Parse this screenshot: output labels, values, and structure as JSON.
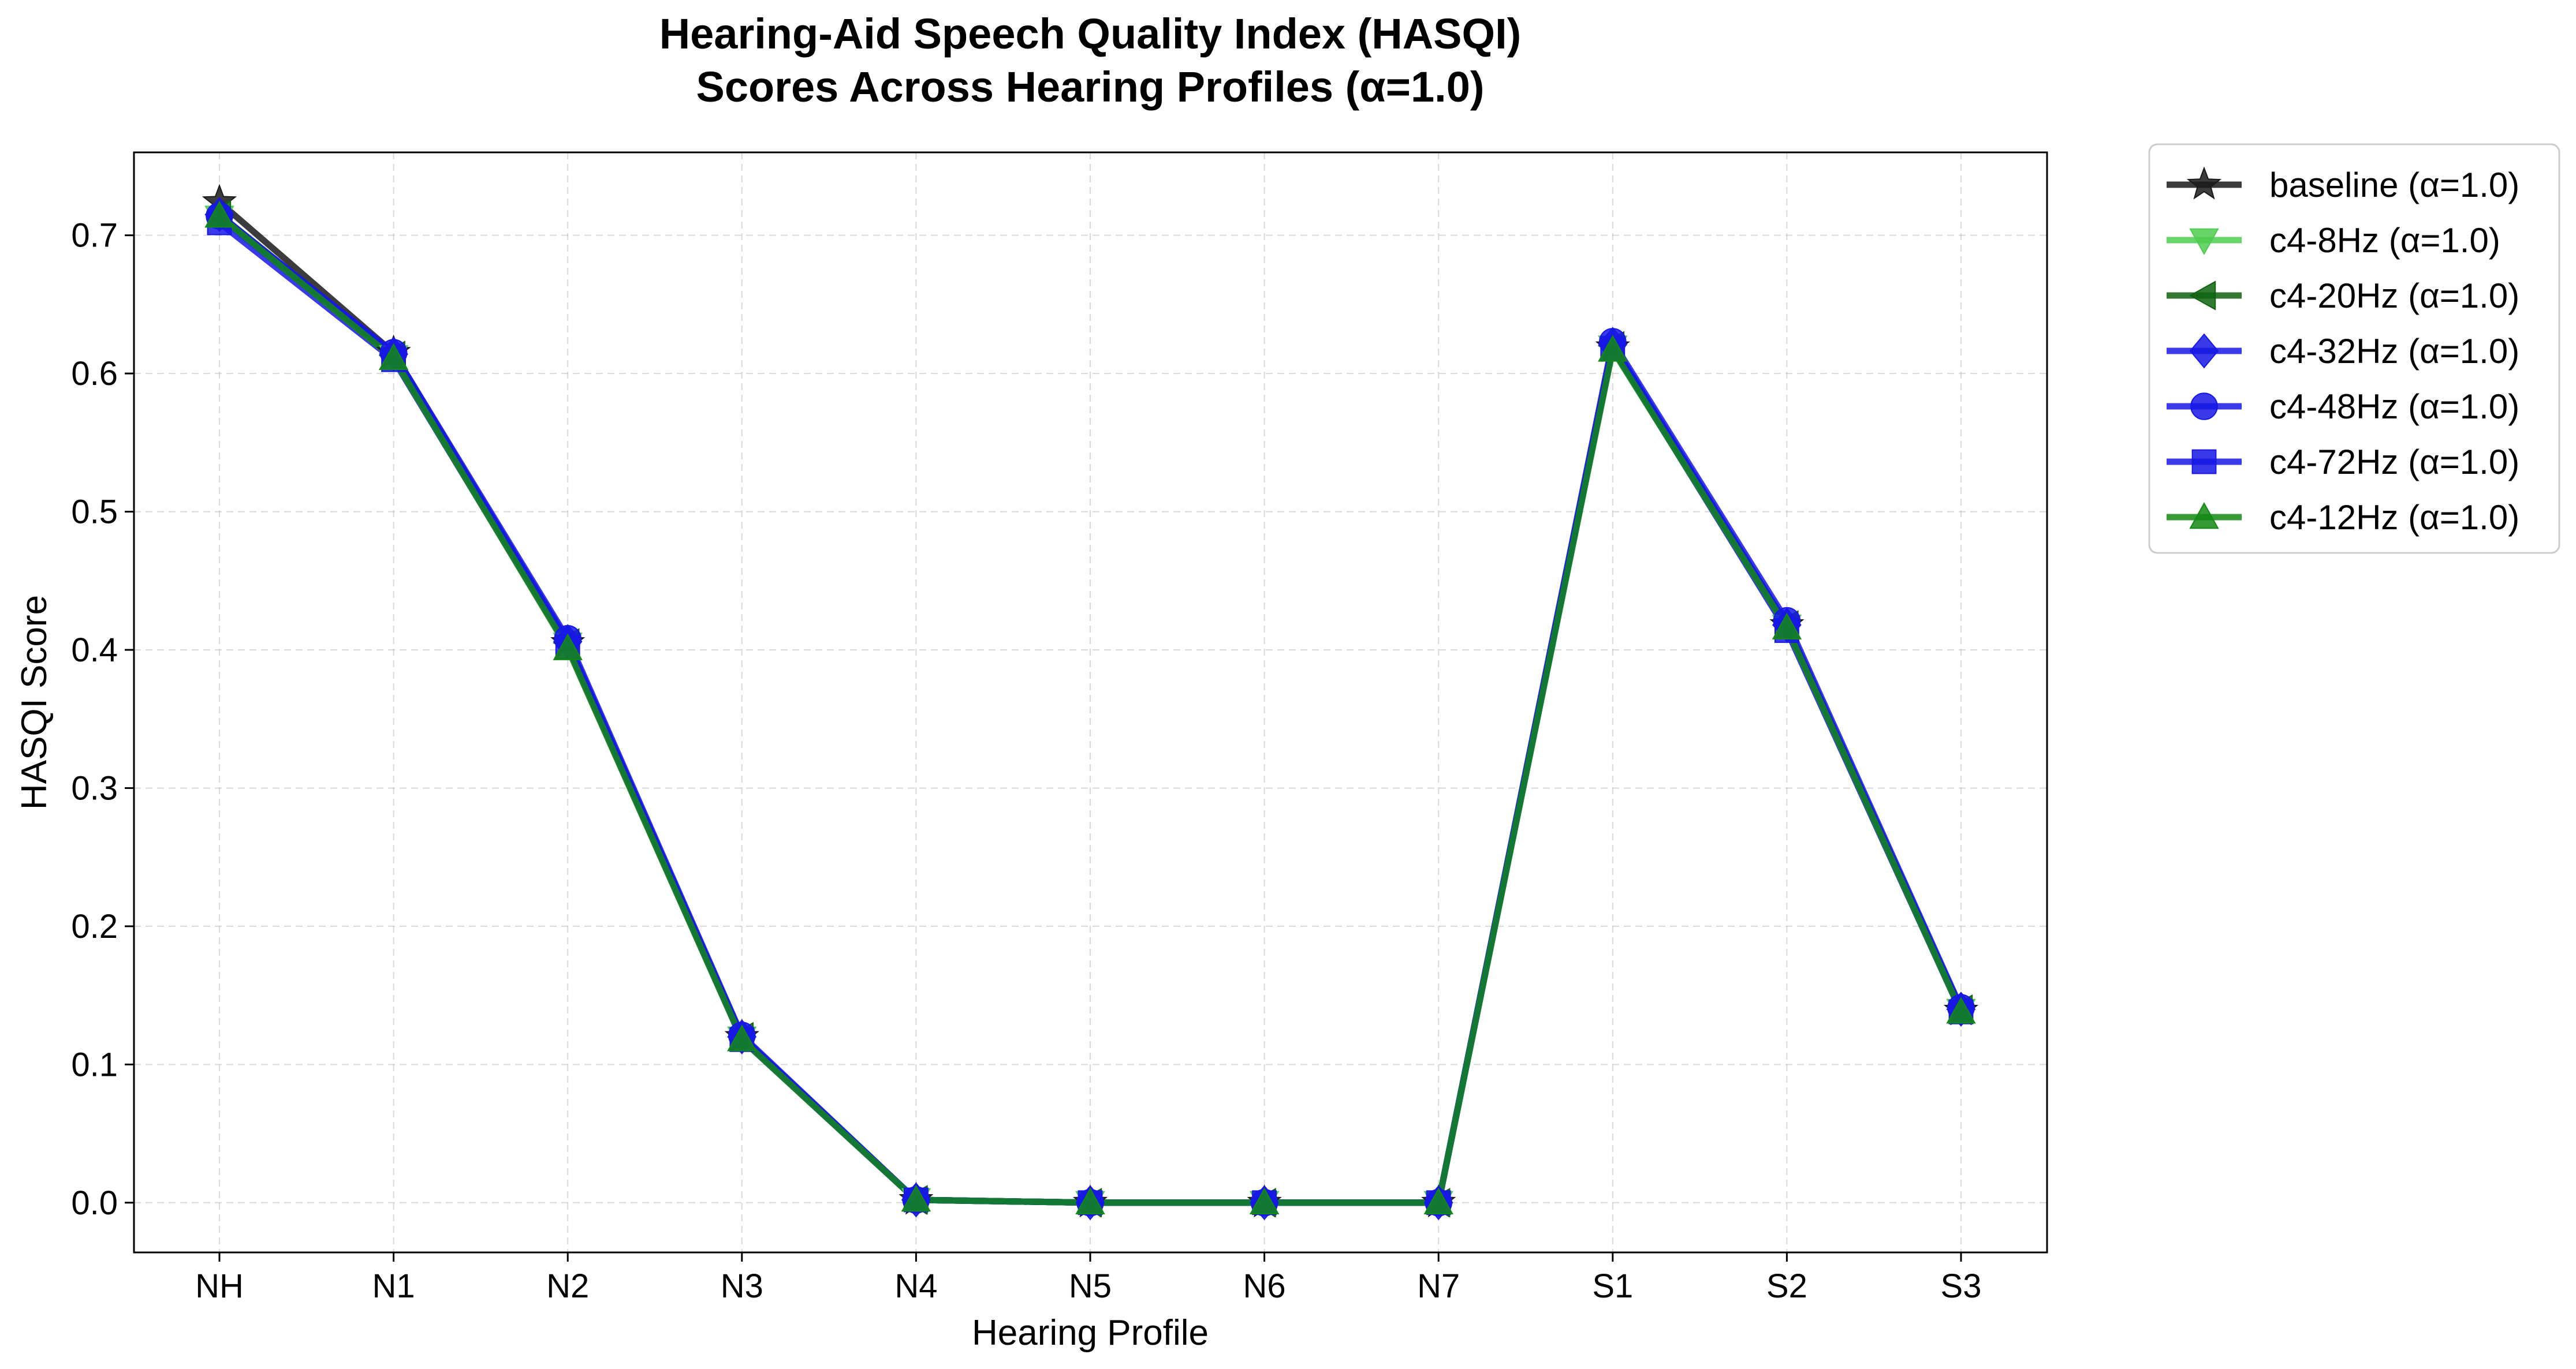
{
  "chart_data": {
    "type": "line",
    "title_line1": "Hearing-Aid Speech Quality Index (HASQI)",
    "title_line2": "Scores Across Hearing Profiles (α=1.0)",
    "xlabel": "Hearing Profile",
    "ylabel": "HASQI Score",
    "categories": [
      "NH",
      "N1",
      "N2",
      "N3",
      "N4",
      "N5",
      "N6",
      "N7",
      "S1",
      "S2",
      "S3"
    ],
    "ylim": [
      -0.036,
      0.76
    ],
    "yticks": [
      "0.0",
      "0.1",
      "0.2",
      "0.3",
      "0.4",
      "0.5",
      "0.6",
      "0.7"
    ],
    "grid": true,
    "legend_position": "outside-top-right",
    "series": [
      {
        "name": "baseline (α=1.0)",
        "color": "#1a1a1a",
        "marker": "star",
        "values": [
          0.724,
          0.615,
          0.405,
          0.12,
          0.002,
          0.0,
          0.0,
          0.0,
          0.619,
          0.418,
          0.139
        ]
      },
      {
        "name": "c4-8Hz (α=1.0)",
        "color": "#4fcc4f",
        "marker": "triangle-down",
        "values": [
          0.713,
          0.612,
          0.404,
          0.119,
          0.002,
          0.0,
          0.0,
          0.0,
          0.619,
          0.417,
          0.139
        ]
      },
      {
        "name": "c4-20Hz (α=1.0)",
        "color": "#0f640f",
        "marker": "triangle-left",
        "values": [
          0.715,
          0.613,
          0.405,
          0.12,
          0.002,
          0.0,
          0.0,
          0.0,
          0.62,
          0.418,
          0.14
        ]
      },
      {
        "name": "c4-32Hz (α=1.0)",
        "color": "#1717e6",
        "marker": "diamond",
        "values": [
          0.715,
          0.614,
          0.406,
          0.12,
          0.002,
          0.0,
          0.0,
          0.0,
          0.621,
          0.418,
          0.14
        ]
      },
      {
        "name": "c4-48Hz (α=1.0)",
        "color": "#1717e6",
        "marker": "circle",
        "values": [
          0.714,
          0.615,
          0.408,
          0.121,
          0.002,
          0.0,
          0.0,
          0.0,
          0.623,
          0.421,
          0.141
        ]
      },
      {
        "name": "c4-72Hz (α=1.0)",
        "color": "#1717e6",
        "marker": "square",
        "values": [
          0.709,
          0.61,
          0.402,
          0.118,
          0.002,
          0.0,
          0.0,
          0.0,
          0.618,
          0.414,
          0.138
        ]
      },
      {
        "name": "c4-12Hz (α=1.0)",
        "color": "#138a13",
        "marker": "triangle-up",
        "values": [
          0.714,
          0.611,
          0.401,
          0.118,
          0.002,
          0.0,
          0.0,
          0.0,
          0.617,
          0.416,
          0.138
        ]
      }
    ]
  }
}
